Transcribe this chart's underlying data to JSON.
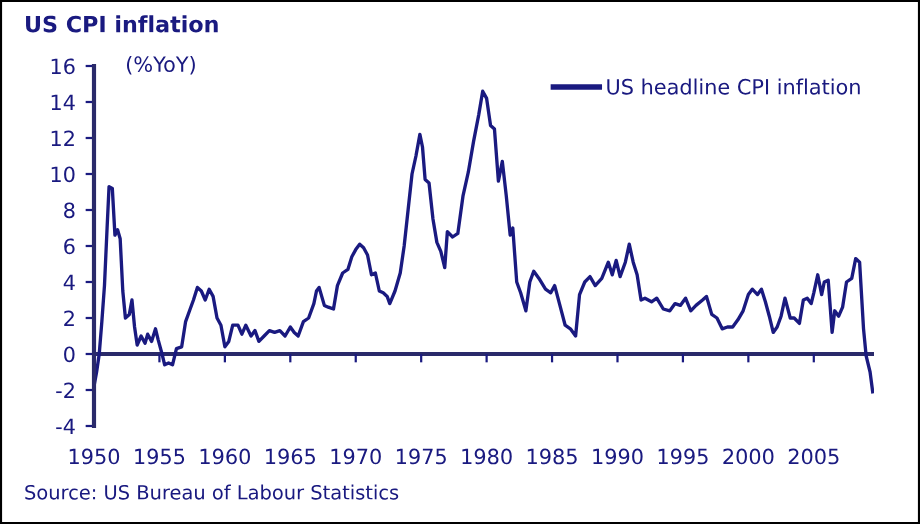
{
  "chart_data": {
    "type": "line",
    "title": "US CPI inflation",
    "ylabel": "(%YoY)",
    "x": [
      1950.0,
      1950.2,
      1950.4,
      1950.6,
      1950.8,
      1951.0,
      1951.15,
      1951.4,
      1951.6,
      1951.8,
      1952.0,
      1952.2,
      1952.4,
      1952.7,
      1952.9,
      1953.1,
      1953.3,
      1953.6,
      1953.9,
      1954.1,
      1954.4,
      1954.7,
      1954.9,
      1955.2,
      1955.4,
      1955.7,
      1956.0,
      1956.3,
      1956.7,
      1957.0,
      1957.3,
      1957.6,
      1957.9,
      1958.2,
      1958.5,
      1958.8,
      1959.1,
      1959.4,
      1959.7,
      1960.0,
      1960.3,
      1960.6,
      1961.0,
      1961.3,
      1961.6,
      1962.0,
      1962.3,
      1962.6,
      1963.0,
      1963.4,
      1963.8,
      1964.2,
      1964.6,
      1965.0,
      1965.3,
      1965.6,
      1966.0,
      1966.4,
      1966.8,
      1967.0,
      1967.2,
      1967.6,
      1967.9,
      1968.3,
      1968.6,
      1969.0,
      1969.4,
      1969.7,
      1970.0,
      1970.3,
      1970.6,
      1970.9,
      1971.2,
      1971.5,
      1971.8,
      1972.1,
      1972.4,
      1972.6,
      1973.0,
      1973.4,
      1973.7,
      1974.0,
      1974.3,
      1974.6,
      1974.9,
      1975.1,
      1975.3,
      1975.6,
      1975.9,
      1976.2,
      1976.5,
      1976.8,
      1977.0,
      1977.4,
      1977.8,
      1978.2,
      1978.6,
      1979.0,
      1979.4,
      1979.7,
      1980.0,
      1980.3,
      1980.6,
      1980.9,
      1981.2,
      1981.5,
      1981.8,
      1982.0,
      1982.3,
      1982.6,
      1983.0,
      1983.3,
      1983.6,
      1984.0,
      1984.5,
      1984.9,
      1985.2,
      1985.6,
      1986.0,
      1986.4,
      1986.8,
      1987.1,
      1987.5,
      1987.9,
      1988.3,
      1988.8,
      1989.3,
      1989.6,
      1989.9,
      1990.2,
      1990.6,
      1990.9,
      1991.2,
      1991.5,
      1991.8,
      1992.1,
      1992.6,
      1993.0,
      1993.5,
      1994.0,
      1994.4,
      1994.8,
      1995.2,
      1995.6,
      1996.0,
      1996.5,
      1996.8,
      1997.2,
      1997.6,
      1998.0,
      1998.4,
      1998.8,
      1999.2,
      1999.6,
      2000.0,
      2000.3,
      2000.7,
      2001.0,
      2001.3,
      2001.6,
      2001.9,
      2002.2,
      2002.5,
      2002.8,
      2003.2,
      2003.5,
      2003.9,
      2004.2,
      2004.5,
      2004.8,
      2005.0,
      2005.3,
      2005.6,
      2005.8,
      2006.1,
      2006.4,
      2006.6,
      2006.9,
      2007.2,
      2007.5,
      2007.9,
      2008.2,
      2008.5,
      2008.8,
      2009.0,
      2009.3,
      2009.5
    ],
    "series": [
      {
        "name": "US headline CPI inflation",
        "color": "#1a1a80",
        "values": [
          -1.8,
          -1.0,
          0.0,
          1.8,
          3.8,
          7.0,
          9.3,
          9.2,
          6.6,
          6.9,
          6.4,
          3.5,
          2.0,
          2.2,
          3.0,
          1.5,
          0.5,
          1.0,
          0.6,
          1.1,
          0.7,
          1.4,
          0.8,
          0.0,
          -0.6,
          -0.5,
          -0.6,
          0.3,
          0.4,
          1.8,
          2.4,
          3.0,
          3.7,
          3.5,
          3.0,
          3.6,
          3.2,
          2.0,
          1.6,
          0.4,
          0.7,
          1.6,
          1.6,
          1.1,
          1.6,
          1.0,
          1.3,
          0.7,
          1.0,
          1.3,
          1.2,
          1.3,
          1.0,
          1.5,
          1.2,
          1.0,
          1.8,
          2.0,
          2.8,
          3.5,
          3.7,
          2.7,
          2.6,
          2.5,
          3.8,
          4.5,
          4.7,
          5.4,
          5.8,
          6.1,
          5.9,
          5.5,
          4.4,
          4.5,
          3.5,
          3.4,
          3.2,
          2.8,
          3.5,
          4.5,
          6.0,
          8.0,
          10.0,
          11.0,
          12.2,
          11.5,
          9.7,
          9.5,
          7.5,
          6.2,
          5.7,
          4.8,
          6.8,
          6.5,
          6.7,
          8.8,
          10.1,
          11.8,
          13.3,
          14.6,
          14.2,
          12.7,
          12.5,
          9.6,
          10.7,
          8.8,
          6.6,
          7.0,
          4.0,
          3.4,
          2.4,
          4.0,
          4.6,
          4.2,
          3.6,
          3.4,
          3.8,
          2.7,
          1.6,
          1.4,
          1.0,
          3.3,
          4.0,
          4.3,
          3.8,
          4.2,
          5.1,
          4.4,
          5.2,
          4.3,
          5.1,
          6.1,
          5.1,
          4.4,
          3.0,
          3.1,
          2.9,
          3.1,
          2.5,
          2.4,
          2.8,
          2.7,
          3.1,
          2.4,
          2.7,
          3.0,
          3.2,
          2.2,
          2.0,
          1.4,
          1.5,
          1.5,
          1.9,
          2.4,
          3.3,
          3.6,
          3.3,
          3.6,
          2.9,
          2.1,
          1.2,
          1.5,
          2.1,
          3.1,
          2.0,
          2.0,
          1.7,
          3.0,
          3.1,
          2.8,
          3.4,
          4.4,
          3.3,
          4.0,
          4.1,
          1.2,
          2.4,
          2.1,
          2.6,
          4.0,
          4.2,
          5.3,
          5.1,
          1.4,
          -0.1,
          -1.0,
          -2.1
        ]
      }
    ],
    "xlim": [
      1950,
      2009.6
    ],
    "xticks": [
      1950,
      1955,
      1960,
      1965,
      1970,
      1975,
      1980,
      1985,
      1990,
      1995,
      2000,
      2005
    ],
    "ylim": [
      -4,
      16
    ],
    "yticks": [
      -4,
      -2,
      0,
      2,
      4,
      6,
      8,
      10,
      12,
      14,
      16
    ],
    "ref_lines": [
      {
        "axis": "y",
        "value": 0,
        "color": "#2a2a6a",
        "line_style": "solid"
      }
    ],
    "grid": false,
    "legend": "top right",
    "marker": "none",
    "line_style": "solid",
    "annotations": [
      "Source: US Bureau of Labour Statistics"
    ]
  }
}
